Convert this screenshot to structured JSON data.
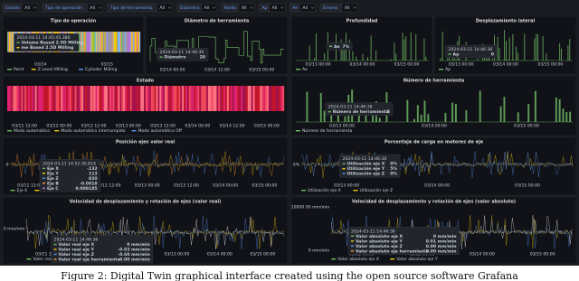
{
  "filters": [
    {
      "label": "Estado",
      "value": "All"
    },
    {
      "label": "Tipo de operación",
      "value": "All"
    },
    {
      "label": "Tipo de herramienta",
      "value": "All"
    },
    {
      "label": "Diámetro",
      "value": "All"
    },
    {
      "label": "Radio",
      "value": "All"
    },
    {
      "label": "Ap",
      "value": "All"
    },
    {
      "label": "Ae",
      "value": "All"
    },
    {
      "label": "Errores",
      "value": "All"
    }
  ],
  "panels": [
    {
      "title": "Tipo de operación",
      "x_labels": [
        "03/14",
        "03/15"
      ],
      "legend": [
        "Point",
        "Z Level Milling",
        "Cylinder Milling"
      ],
      "tooltip": {
        "time": "2024-03-11 14:45:45.386",
        "rows": [
          {
            "label": "Volume Based 2.5D Milling"
          },
          {
            "label": "me Based 2.5D Milling"
          }
        ]
      }
    },
    {
      "title": "Diámetro de herramienta",
      "x_labels": [
        "03/14 00:00",
        "03/14 12:00",
        "03/15 00:00"
      ],
      "tooltip": {
        "time": "2024-03-11 14:46:36",
        "rows": [
          {
            "label": "Diámetro",
            "value": "20"
          }
        ]
      }
    },
    {
      "title": "Profundidad",
      "x_labels": [
        "03/13 00:00",
        "03/14 00:00",
        "03/15 00:00"
      ],
      "legend": [
        "Ae"
      ],
      "tooltip": {
        "rows": [
          {
            "label": "Ae",
            "value": "7%"
          }
        ]
      }
    },
    {
      "title": "Desplazamiento lateral",
      "x_labels": [
        "03/13 00:00",
        "03/14 00:00",
        "03/15 00:00"
      ],
      "legend": [
        "Ap"
      ],
      "tooltip": {
        "time": "2024-03-11 14:46:36",
        "rows": [
          {
            "label": "Ap",
            "value": "0"
          }
        ]
      }
    },
    {
      "title": "Estado",
      "x_labels": [
        "03/11 12:00",
        "03/12 00:00",
        "03/12 12:00",
        "03/13 00:00",
        "03/13 12:00",
        "03/14 00:00",
        "03/14 12:00",
        "03/15 00:00"
      ],
      "legend": [
        "Modo automático",
        "Modo automático interrumpido",
        "Modo automático Off"
      ]
    },
    {
      "title": "Número de herramienta",
      "x_labels": [
        "03/13 00:00",
        "03/14 00:00",
        "03/15 00:00"
      ],
      "legend": [
        "Número de herramienta"
      ],
      "tooltip": {
        "time": "2024-03-11 14:46:36",
        "rows": [
          {
            "label": "Número de herramienta",
            "value": "5"
          }
        ]
      }
    },
    {
      "title": "Posición ejes valor real",
      "y_labels": [
        "0"
      ],
      "x_labels": [
        "03/11 12:00",
        "03/12 00:00",
        "03/12 12:00",
        "03/13 00:00",
        "03/13 12:00",
        "03/14 00:00",
        "03/15 00:00"
      ],
      "legend": [
        "Eje X",
        "Eje C"
      ],
      "tooltip": {
        "time": "2024-03-11 14:52:30.814",
        "rows": [
          {
            "label": "Eje X",
            "value": "-132"
          },
          {
            "label": "Eje Y",
            "value": "113"
          },
          {
            "label": "Eje Z",
            "value": "820"
          },
          {
            "label": "Eje B",
            "value": "-0.0018"
          },
          {
            "label": "Eje C",
            "value": "0.000185"
          }
        ]
      }
    },
    {
      "title": "Porcentaje de carga en motores de eje",
      "y_labels": [
        "0%"
      ],
      "x_labels": [
        "03/13 00:00",
        "03/14 00:00",
        "03/15 00:00"
      ],
      "legend": [
        "Utilización eje X",
        "Utilización eje Z"
      ],
      "tooltip": {
        "time": "2024-03-11 14:46:36",
        "rows": [
          {
            "label": "Utilización eje X",
            "value": "0%"
          },
          {
            "label": "Utilización eje Y",
            "value": "5%"
          },
          {
            "label": "Utilización eje Z",
            "value": "0%"
          }
        ]
      }
    },
    {
      "title": "Velocidad de desplazamiento y rotación de ejes (valor real)",
      "y_labels": [
        "0 mm/min"
      ],
      "x_labels": [
        "03/11 12:00",
        "03/12 00:00",
        "03/12 12:00",
        "03/13 00:00",
        "03/14 00:00",
        "03/15 00:00"
      ],
      "legend": [
        "Valor real eje X"
      ],
      "tooltip": {
        "time": "2024-03-11 14:46:36",
        "rows": [
          {
            "label": "Valor real eje X",
            "value": "0 mm/min"
          },
          {
            "label": "Valor real eje Y",
            "value": "-0.03 mm/min"
          },
          {
            "label": "Valor real eje Z",
            "value": "-0.60 mm/min"
          },
          {
            "label": "Valor real eje herramienta",
            "value": "0.00 mm/min"
          }
        ]
      }
    },
    {
      "title": "Velocidad de desplazamiento y rotación de ejes (valor absoluto)",
      "y_labels": [
        "10000.00 mm/min",
        "0 mm/min"
      ],
      "x_labels": [
        "03/12 00:00",
        "03/13 00:00",
        "03/14 00:00",
        "03/15 00:00"
      ],
      "legend": [
        "Valor absoluto eje X",
        "Valor absoluto eje Y"
      ],
      "tooltip": {
        "time": "2024-03-11 14:46:36",
        "rows": [
          {
            "label": "Valor absoluto eje X",
            "value": "0 mm/min"
          },
          {
            "label": "Valor absoluto eje Y",
            "value": "0.01 mm/min"
          },
          {
            "label": "Valor absoluto eje Z",
            "value": "0.00 mm/min"
          },
          {
            "label": "Valor absoluto eje herramienta",
            "value": "0.00 mm/min"
          }
        ]
      }
    }
  ],
  "caption": "Figure 2: Digital Twin graphical interface created using the open source software Grafana"
}
